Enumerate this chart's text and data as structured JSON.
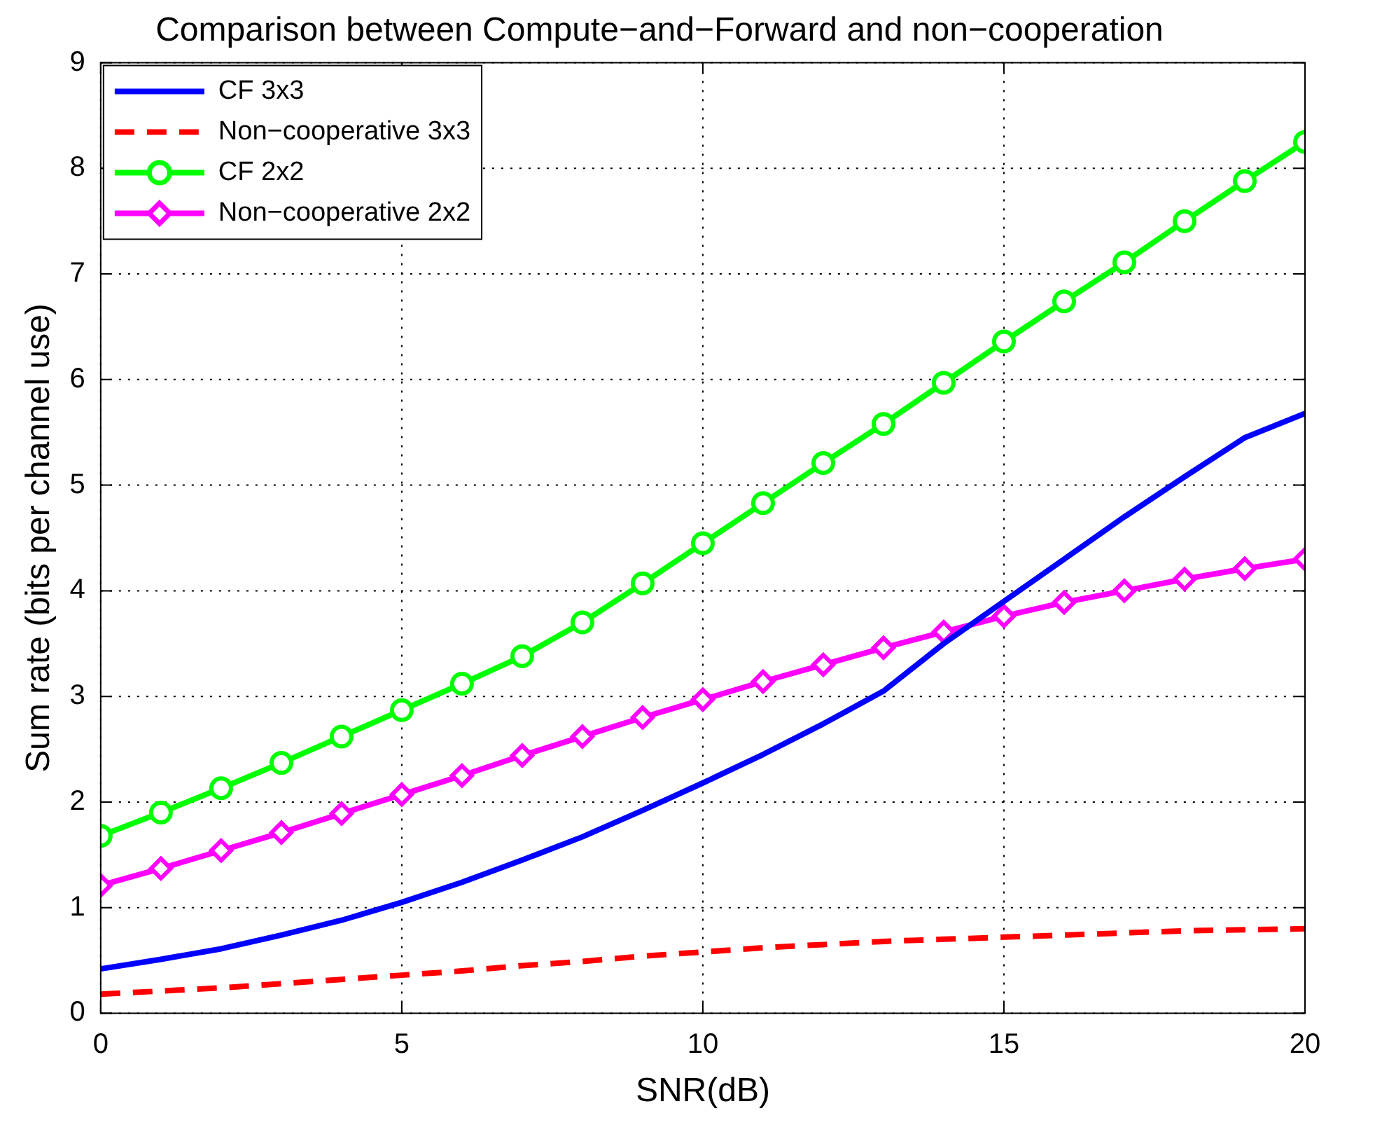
{
  "chart_data": {
    "type": "line",
    "title": "Comparison between Compute−and−Forward and non−cooperation",
    "xlabel": "SNR(dB)",
    "ylabel": "Sum rate (bits per channel use)",
    "x": [
      0,
      1,
      2,
      3,
      4,
      5,
      6,
      7,
      8,
      9,
      10,
      11,
      12,
      13,
      14,
      15,
      16,
      17,
      18,
      19,
      20
    ],
    "xlim": [
      0,
      20
    ],
    "xticks": [
      0,
      5,
      10,
      15,
      20
    ],
    "ylim": [
      0,
      9
    ],
    "yticks": [
      0,
      1,
      2,
      3,
      4,
      5,
      6,
      7,
      8,
      9
    ],
    "grid": true,
    "legend": "top left",
    "series": [
      {
        "name": "CF 3x3",
        "color": "#0000ff",
        "marker": "none",
        "line_style": "solid",
        "values": [
          0.42,
          0.51,
          0.61,
          0.74,
          0.88,
          1.05,
          1.24,
          1.45,
          1.67,
          1.92,
          2.18,
          2.45,
          2.74,
          3.05,
          3.5,
          3.9,
          4.3,
          4.7,
          5.08,
          5.45,
          5.68
        ]
      },
      {
        "name": "Non−cooperative 3x3",
        "color": "#ff0000",
        "marker": "none",
        "line_style": "dashed",
        "values": [
          0.18,
          0.21,
          0.24,
          0.28,
          0.32,
          0.36,
          0.4,
          0.45,
          0.49,
          0.54,
          0.58,
          0.62,
          0.65,
          0.68,
          0.7,
          0.72,
          0.74,
          0.76,
          0.78,
          0.79,
          0.8
        ]
      },
      {
        "name": "CF 2x2",
        "color": "#00ff00",
        "marker": "circle",
        "line_style": "solid",
        "values": [
          1.68,
          1.9,
          2.13,
          2.37,
          2.62,
          2.87,
          3.12,
          3.38,
          3.7,
          4.07,
          4.45,
          4.83,
          5.21,
          5.58,
          5.97,
          6.36,
          6.74,
          7.11,
          7.5,
          7.88,
          8.25
        ]
      },
      {
        "name": "Non−cooperative 2x2",
        "color": "#ff00ff",
        "marker": "diamond",
        "line_style": "solid",
        "values": [
          1.21,
          1.37,
          1.54,
          1.71,
          1.89,
          2.07,
          2.25,
          2.44,
          2.62,
          2.8,
          2.97,
          3.14,
          3.3,
          3.46,
          3.61,
          3.76,
          3.89,
          4.0,
          4.11,
          4.21,
          4.3
        ]
      }
    ]
  }
}
